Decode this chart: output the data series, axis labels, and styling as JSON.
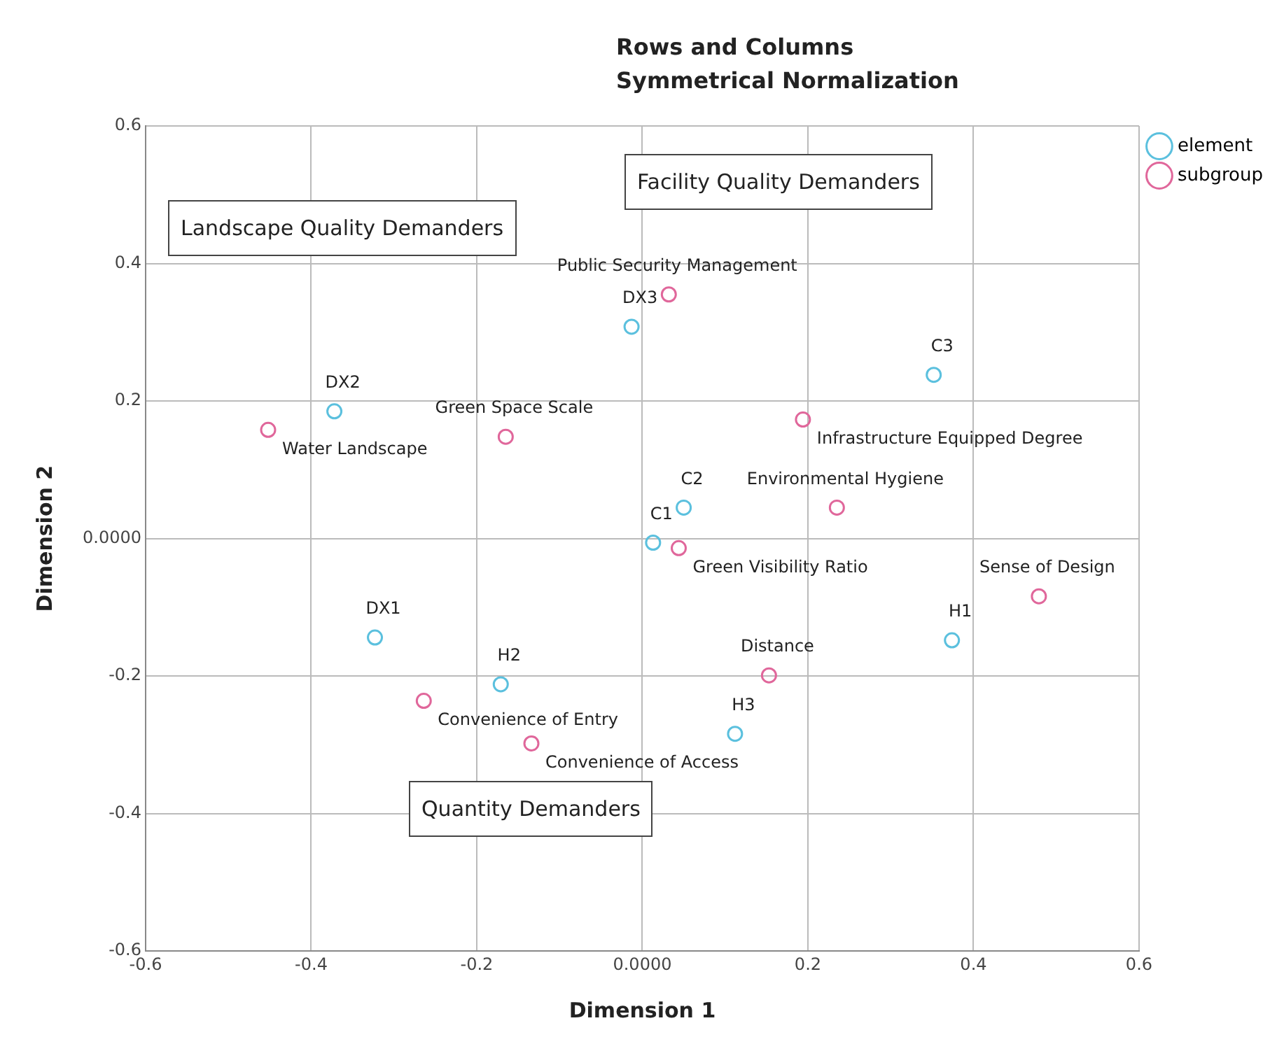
{
  "chart_data": {
    "type": "scatter",
    "title": "Rows and Columns Symmetrical Normalization",
    "xlabel": "Dimension 1",
    "ylabel": "Dimension 2",
    "xlim": [
      -0.6,
      0.6
    ],
    "ylim": [
      -0.6,
      0.6
    ],
    "xticks": [
      -0.6,
      -0.4,
      -0.2,
      {
        "value": 0,
        "label": "0.0000"
      },
      0.2,
      0.4,
      0.6
    ],
    "yticks": [
      -0.6,
      -0.4,
      -0.2,
      {
        "value": 0,
        "label": "0.0000"
      },
      0.2,
      0.4,
      0.6
    ],
    "grid": true,
    "legend": "top right",
    "marker": "circle",
    "series": [
      {
        "name": "element",
        "color": "#5bc0de",
        "x": [
          -0.372,
          -0.013,
          0.352,
          0.05,
          0.013,
          0.374,
          -0.323,
          -0.171,
          0.112
        ],
        "values": [
          0.185,
          0.308,
          0.238,
          0.045,
          -0.006,
          -0.148,
          -0.144,
          -0.212,
          -0.284
        ]
      },
      {
        "name": "subgroup",
        "color": "#e0679b",
        "x": [
          0.032,
          -0.452,
          -0.165,
          0.194,
          0.235,
          0.044,
          0.479,
          0.153,
          -0.264,
          -0.134
        ],
        "values": [
          0.355,
          0.158,
          0.148,
          0.173,
          0.045,
          -0.014,
          -0.084,
          -0.199,
          -0.236,
          -0.298
        ]
      }
    ],
    "annotations": [
      "Landscape Quality Demanders",
      "Facility Quality Demanders",
      "Quantity Demanders",
      {
        "text": "DX2",
        "x": -0.372,
        "y": 0.185
      },
      {
        "text": "DX3",
        "x": -0.013,
        "y": 0.308
      },
      {
        "text": "C3",
        "x": 0.352,
        "y": 0.238
      },
      {
        "text": "C2",
        "x": 0.05,
        "y": 0.045
      },
      {
        "text": "C1",
        "x": 0.013,
        "y": -0.006
      },
      {
        "text": "H1",
        "x": 0.374,
        "y": -0.148
      },
      {
        "text": "DX1",
        "x": -0.323,
        "y": -0.144
      },
      {
        "text": "H2",
        "x": -0.171,
        "y": -0.212
      },
      {
        "text": "H3",
        "x": 0.112,
        "y": -0.284
      },
      {
        "text": "Public Security Management",
        "x": 0.032,
        "y": 0.355
      },
      {
        "text": "Water Landscape",
        "x": -0.452,
        "y": 0.158
      },
      {
        "text": "Green Space Scale",
        "x": -0.165,
        "y": 0.148
      },
      {
        "text": "Infrastructure Equipped Degree",
        "x": 0.194,
        "y": 0.173
      },
      {
        "text": "Environmental Hygiene",
        "x": 0.235,
        "y": 0.045
      },
      {
        "text": "Green Visibility Ratio",
        "x": 0.044,
        "y": -0.014
      },
      {
        "text": "Sense of Design",
        "x": 0.479,
        "y": -0.084
      },
      {
        "text": "Distance",
        "x": 0.153,
        "y": -0.199
      },
      {
        "text": "Convenience of Entry",
        "x": -0.264,
        "y": -0.236
      },
      {
        "text": "Convenience of Access",
        "x": -0.134,
        "y": -0.298
      }
    ]
  }
}
